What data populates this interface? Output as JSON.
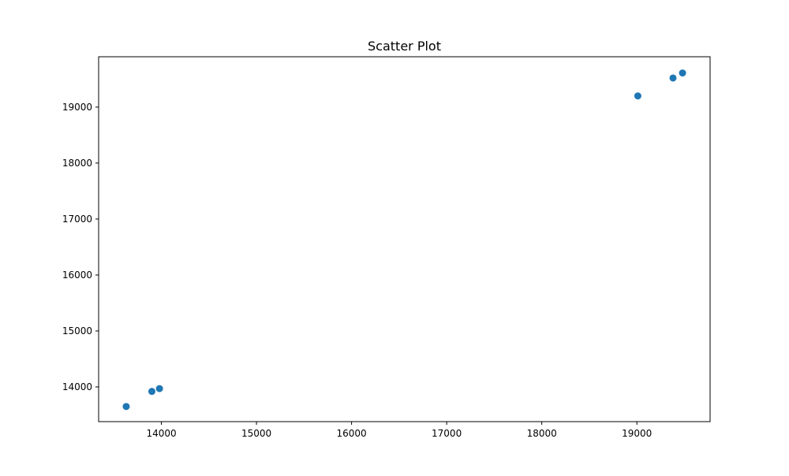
{
  "chart_data": {
    "type": "scatter",
    "title": "Scatter Plot",
    "xlabel": "",
    "ylabel": "",
    "xlim": [
      13340,
      19770
    ],
    "ylim": [
      13380,
      19900
    ],
    "x_ticks": [
      14000,
      15000,
      16000,
      17000,
      18000,
      19000
    ],
    "y_ticks": [
      14000,
      15000,
      16000,
      17000,
      18000,
      19000
    ],
    "grid": false,
    "marker_color": "#1f77b4",
    "series": [
      {
        "points": [
          {
            "x": 13630,
            "y": 13650
          },
          {
            "x": 13900,
            "y": 13920
          },
          {
            "x": 13980,
            "y": 13970
          },
          {
            "x": 19010,
            "y": 19200
          },
          {
            "x": 19380,
            "y": 19520
          },
          {
            "x": 19480,
            "y": 19610
          }
        ]
      }
    ]
  }
}
